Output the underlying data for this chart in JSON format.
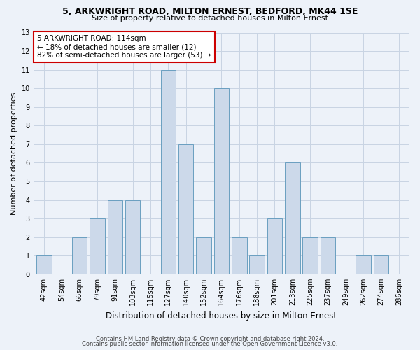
{
  "title1": "5, ARKWRIGHT ROAD, MILTON ERNEST, BEDFORD, MK44 1SE",
  "title2": "Size of property relative to detached houses in Milton Ernest",
  "xlabel": "Distribution of detached houses by size in Milton Ernest",
  "ylabel": "Number of detached properties",
  "bin_labels": [
    "42sqm",
    "54sqm",
    "66sqm",
    "79sqm",
    "91sqm",
    "103sqm",
    "115sqm",
    "127sqm",
    "140sqm",
    "152sqm",
    "164sqm",
    "176sqm",
    "188sqm",
    "201sqm",
    "213sqm",
    "225sqm",
    "237sqm",
    "249sqm",
    "262sqm",
    "274sqm",
    "286sqm"
  ],
  "counts": [
    1,
    0,
    2,
    3,
    4,
    4,
    0,
    11,
    7,
    2,
    10,
    2,
    1,
    3,
    6,
    2,
    2,
    0,
    1,
    1,
    0
  ],
  "bar_color": "#ccd9ea",
  "bar_edge_color": "#6a9fc0",
  "annotation_text": "5 ARKWRIGHT ROAD: 114sqm\n← 18% of detached houses are smaller (12)\n82% of semi-detached houses are larger (53) →",
  "annotation_box_color": "white",
  "annotation_box_edge_color": "#cc0000",
  "ylim": [
    0,
    13
  ],
  "yticks": [
    0,
    1,
    2,
    3,
    4,
    5,
    6,
    7,
    8,
    9,
    10,
    11,
    12,
    13
  ],
  "footer1": "Contains HM Land Registry data © Crown copyright and database right 2024.",
  "footer2": "Contains public sector information licensed under the Open Government Licence v3.0.",
  "bg_color": "#edf2f9",
  "grid_color": "#c8d4e3",
  "title1_fontsize": 9,
  "title2_fontsize": 8,
  "ylabel_fontsize": 8,
  "xlabel_fontsize": 8.5,
  "tick_fontsize": 7,
  "annot_fontsize": 7.5,
  "footer_fontsize": 6
}
